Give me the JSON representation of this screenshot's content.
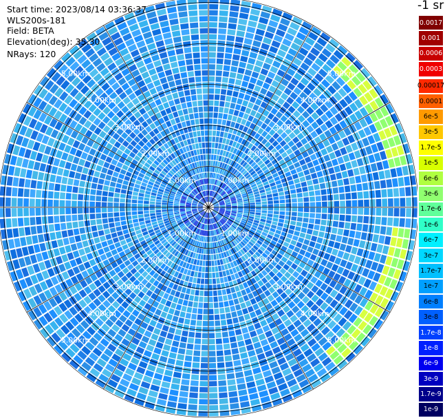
{
  "header": {
    "start_time": "Start time: 2023/08/14 03:36:37",
    "device": "WLS200s-181",
    "field": "Field: BETA",
    "elevation": "Elevation(deg): 35.30",
    "nrays": "NRays: 120"
  },
  "unit_title": "-1 sr",
  "range_labels": [
    "1.00km",
    "2.00km",
    "3.00km",
    "4.00km",
    "5.00km"
  ],
  "colorbar": {
    "levels": [
      {
        "label": "0.0017",
        "color": "#800000",
        "text": "#ffffff"
      },
      {
        "label": "0.001",
        "color": "#a00000",
        "text": "#ffffff"
      },
      {
        "label": "0.0006",
        "color": "#c80000",
        "text": "#ffffff"
      },
      {
        "label": "0.0003",
        "color": "#f00000",
        "text": "#ffffff"
      },
      {
        "label": "0.00017",
        "color": "#ff2a00",
        "text": "#000000"
      },
      {
        "label": "0.0001",
        "color": "#ff6000",
        "text": "#000000"
      },
      {
        "label": "6e-5",
        "color": "#ff9a00",
        "text": "#000000"
      },
      {
        "label": "3e-5",
        "color": "#ffc800",
        "text": "#000000"
      },
      {
        "label": "1.7e-5",
        "color": "#ffff00",
        "text": "#000000"
      },
      {
        "label": "1e-5",
        "color": "#d8ff00",
        "text": "#000000"
      },
      {
        "label": "6e-6",
        "color": "#b0ff40",
        "text": "#000000"
      },
      {
        "label": "3e-6",
        "color": "#90ff70",
        "text": "#000000"
      },
      {
        "label": "1.7e-6",
        "color": "#60ff9a",
        "text": "#000000"
      },
      {
        "label": "1e-6",
        "color": "#30ffc8",
        "text": "#000000"
      },
      {
        "label": "6e-7",
        "color": "#00f0ff",
        "text": "#000000"
      },
      {
        "label": "3e-7",
        "color": "#00d8ff",
        "text": "#000000"
      },
      {
        "label": "1.7e-7",
        "color": "#00c0ff",
        "text": "#000000"
      },
      {
        "label": "1e-7",
        "color": "#00a0ff",
        "text": "#000000"
      },
      {
        "label": "6e-8",
        "color": "#0080ff",
        "text": "#000000"
      },
      {
        "label": "3e-8",
        "color": "#0060ff",
        "text": "#000000"
      },
      {
        "label": "1.7e-8",
        "color": "#0040ff",
        "text": "#ffffff"
      },
      {
        "label": "1e-8",
        "color": "#0020ff",
        "text": "#ffffff"
      },
      {
        "label": "6e-9",
        "color": "#0000f0",
        "text": "#ffffff"
      },
      {
        "label": "3e-9",
        "color": "#0000c0",
        "text": "#ffffff"
      },
      {
        "label": "1.7e-9",
        "color": "#00008a",
        "text": "#ffffff"
      },
      {
        "label": "1e-9",
        "color": "#000060",
        "text": "#ffffff"
      }
    ]
  }
}
